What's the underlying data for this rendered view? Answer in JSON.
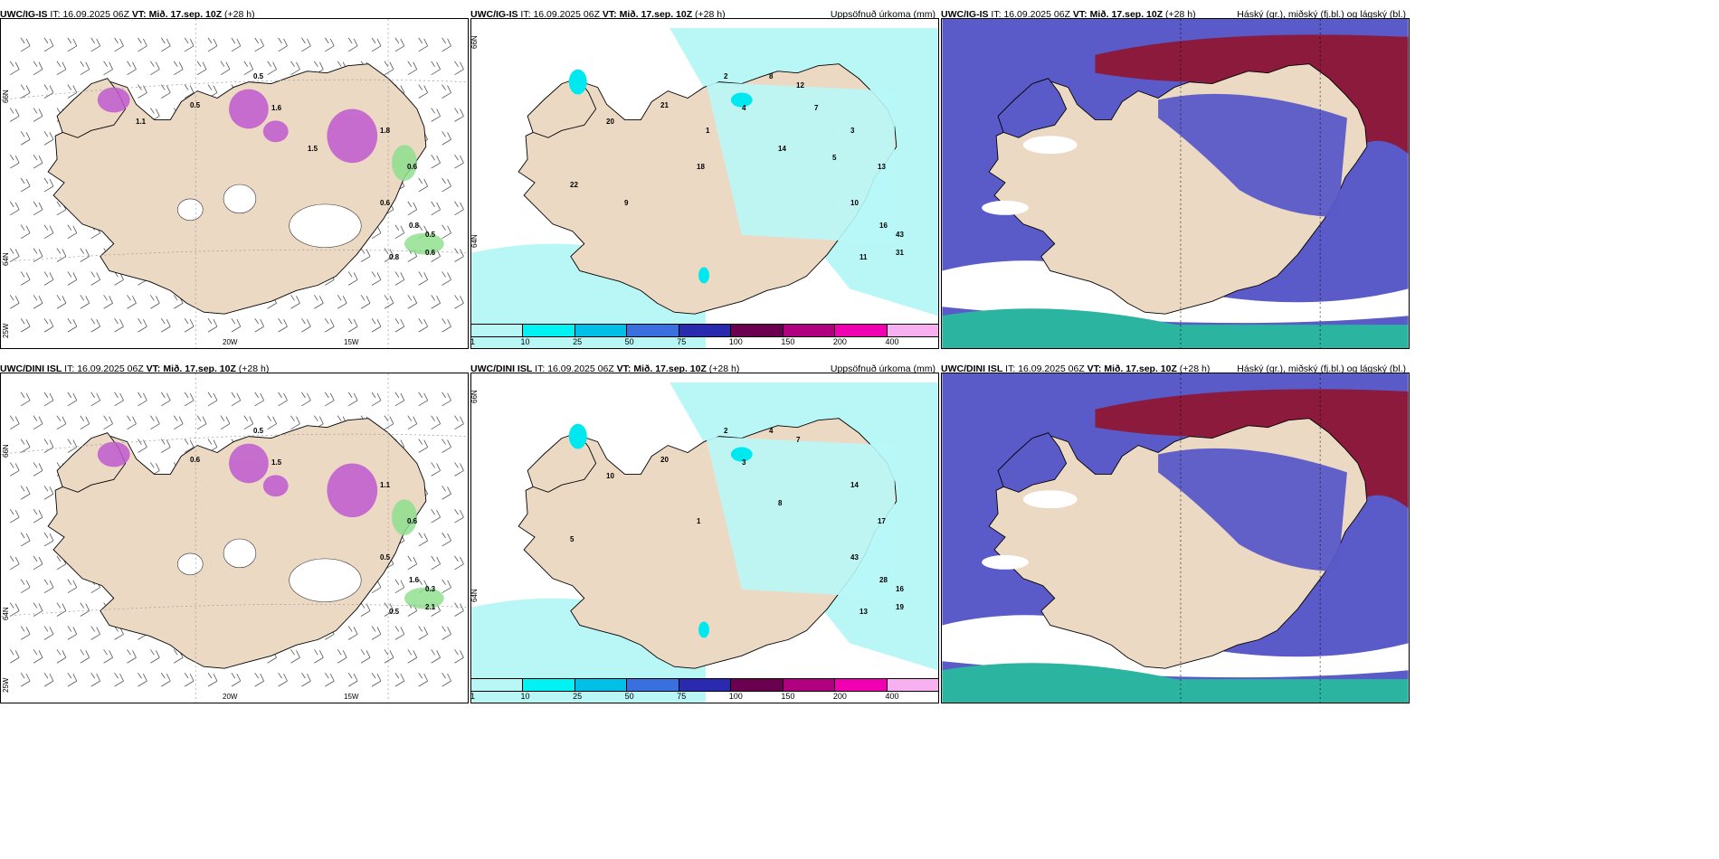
{
  "panels": [
    {
      "model": "UWC/IG-IS",
      "it_label": "IT:",
      "it_value": "16.09.2025 06Z",
      "vt_label": "VT:",
      "vt_value": "Mið. 17.sep. 10Z",
      "lead": "(+28 h)",
      "right_title": "",
      "lat_labels": [
        "66N",
        "64N",
        "25W"
      ],
      "lon_labels": [
        "20W",
        "15W"
      ],
      "values": [
        "0.5",
        "1.6",
        "1.8",
        "0.6",
        "0.6",
        "0.8",
        "0.5",
        "0.6",
        "0.8",
        "0.5",
        "1.5",
        "1.1"
      ]
    },
    {
      "model": "UWC/IG-IS",
      "it_label": "IT:",
      "it_value": "16.09.2025 06Z",
      "vt_label": "VT:",
      "vt_value": "Mið. 17.sep. 10Z",
      "lead": "(+28 h)",
      "right_title": "Uppsöfnuð úrkoma (mm)",
      "lat_labels": [
        "66N",
        "64N"
      ],
      "values": [
        "2",
        "4",
        "3",
        "13",
        "10",
        "16",
        "43",
        "31",
        "11",
        "21",
        "14",
        "20",
        "22",
        "18",
        "12",
        "8",
        "7",
        "5",
        "9",
        "1"
      ],
      "colorbar_ticks": [
        "1",
        "10",
        "25",
        "50",
        "75",
        "100",
        "150",
        "200",
        "400"
      ]
    },
    {
      "model": "UWC/IG-IS",
      "it_label": "IT:",
      "it_value": "16.09.2025 06Z",
      "vt_label": "VT:",
      "vt_value": "Mið. 17.sep. 10Z",
      "lead": "(+28 h)",
      "right_title": "Háský (gr.), miðský (fj.bl.) og lágský (bl.)"
    },
    {
      "model": "UWC/DINI ISL",
      "it_label": "IT:",
      "it_value": "16.09.2025 06Z",
      "vt_label": "VT:",
      "vt_value": "Mið. 17.sep. 10Z",
      "lead": "(+28 h)",
      "right_title": "",
      "lat_labels": [
        "66N",
        "64N",
        "25W"
      ],
      "lon_labels": [
        "20W",
        "15W"
      ],
      "values": [
        "0.5",
        "1.5",
        "1.1",
        "0.6",
        "0.5",
        "1.6",
        "0.3",
        "2.1",
        "0.5",
        "0.6"
      ]
    },
    {
      "model": "UWC/DINI ISL",
      "it_label": "IT:",
      "it_value": "16.09.2025 06Z",
      "vt_label": "VT:",
      "vt_value": "Mið. 17.sep. 10Z",
      "lead": "(+28 h)",
      "right_title": "Uppsöfnuð úrkoma (mm)",
      "lat_labels": [
        "66N",
        "64N"
      ],
      "values": [
        "2",
        "3",
        "14",
        "17",
        "43",
        "28",
        "16",
        "19",
        "13",
        "20",
        "8",
        "10",
        "5",
        "1",
        "7",
        "4"
      ],
      "colorbar_ticks": [
        "1",
        "10",
        "25",
        "50",
        "75",
        "100",
        "150",
        "200",
        "400"
      ]
    },
    {
      "model": "UWC/DINI ISL",
      "it_label": "IT:",
      "it_value": "16.09.2025 06Z",
      "vt_label": "VT:",
      "vt_value": "Mið. 17.sep. 10Z",
      "lead": "(+28 h)",
      "right_title": "Háský (gr.), miðský (fj.bl.) og lágský (bl.)"
    }
  ],
  "colors": {
    "land": "#ecd9c4",
    "precip_light": "#b9f7f7",
    "precip_cyan": "#00e8ef",
    "cloud_low": "#5a5ac8",
    "cloud_high": "#8b1a3c",
    "cloud_mid": "#2bb5a0",
    "snow_magenta": "#c05ad0",
    "rain_green": "#90e090",
    "colorbar": [
      "#b9f7f7",
      "#00f2f2",
      "#00c0e8",
      "#3a6fe0",
      "#2a2ab0",
      "#6b0050",
      "#b0007f",
      "#f000b0",
      "#f8b0f0"
    ]
  }
}
